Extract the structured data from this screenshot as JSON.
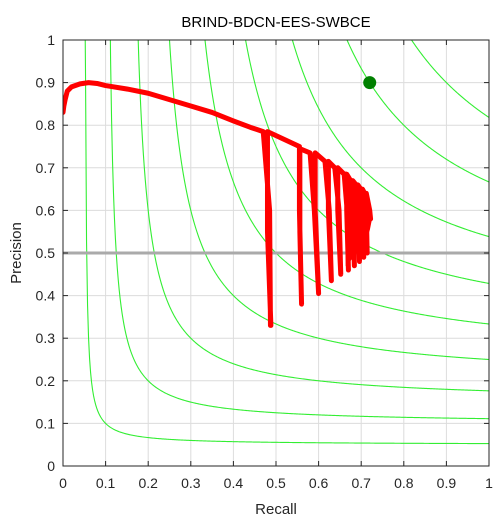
{
  "chart_data": {
    "type": "line",
    "title": "BRIND-BDCN-EES-SWBCE",
    "xlabel": "Recall",
    "ylabel": "Precision",
    "xlim": [
      0,
      1
    ],
    "ylim": [
      0,
      1
    ],
    "xticks": [
      0,
      0.1,
      0.2,
      0.3,
      0.4,
      0.5,
      0.6,
      0.7,
      0.8,
      0.9,
      1
    ],
    "yticks": [
      0,
      0.1,
      0.2,
      0.3,
      0.4,
      0.5,
      0.6,
      0.7,
      0.8,
      0.9,
      1
    ],
    "xtick_labels": [
      "0",
      "0.1",
      "0.2",
      "0.3",
      "0.4",
      "0.5",
      "0.6",
      "0.7",
      "0.8",
      "0.9",
      "1"
    ],
    "ytick_labels": [
      "0",
      "0.1",
      "0.2",
      "0.3",
      "0.4",
      "0.5",
      "0.6",
      "0.7",
      "0.8",
      "0.9",
      "1"
    ],
    "grid": true,
    "iso_f_levels": [
      0.1,
      0.2,
      0.3,
      0.4,
      0.5,
      0.6,
      0.7,
      0.8,
      0.9
    ],
    "chance_level_precision": 0.5,
    "pr_curve": {
      "recall": [
        0.0,
        0.002,
        0.005,
        0.01,
        0.02,
        0.04,
        0.06,
        0.08,
        0.1,
        0.15,
        0.2,
        0.25,
        0.3,
        0.35,
        0.4,
        0.44,
        0.47,
        0.485,
        0.487,
        0.488,
        0.48,
        0.48,
        0.555,
        0.555,
        0.56,
        0.556,
        0.556,
        0.58,
        0.59,
        0.6,
        0.592,
        0.592,
        0.615,
        0.625,
        0.63,
        0.623,
        0.623,
        0.638,
        0.648,
        0.652,
        0.645,
        0.645,
        0.66,
        0.667,
        0.67,
        0.666,
        0.666,
        0.675,
        0.682,
        0.684,
        0.68,
        0.68,
        0.688,
        0.694,
        0.696,
        0.692,
        0.692,
        0.699,
        0.704,
        0.706,
        0.703,
        0.703,
        0.708,
        0.712,
        0.714,
        0.712,
        0.712,
        0.716,
        0.72,
        0.722
      ],
      "precision": [
        0.83,
        0.845,
        0.86,
        0.88,
        0.89,
        0.897,
        0.9,
        0.898,
        0.893,
        0.885,
        0.875,
        0.86,
        0.845,
        0.83,
        0.81,
        0.795,
        0.785,
        0.6,
        0.33,
        0.33,
        0.55,
        0.785,
        0.75,
        0.6,
        0.38,
        0.55,
        0.745,
        0.735,
        0.6,
        0.405,
        0.6,
        0.735,
        0.715,
        0.6,
        0.435,
        0.6,
        0.715,
        0.7,
        0.6,
        0.45,
        0.6,
        0.7,
        0.685,
        0.6,
        0.46,
        0.6,
        0.685,
        0.67,
        0.6,
        0.47,
        0.6,
        0.67,
        0.66,
        0.6,
        0.48,
        0.6,
        0.66,
        0.65,
        0.6,
        0.49,
        0.6,
        0.65,
        0.64,
        0.6,
        0.5,
        0.6,
        0.64,
        0.62,
        0.6,
        0.58
      ],
      "color": "#ff0000"
    },
    "best_point": {
      "recall": 0.72,
      "precision": 0.9,
      "color": "#008000"
    },
    "colors": {
      "iso_f": "#33ee33",
      "chance_line": "#aaaaaa",
      "grid": "#dcdcdc",
      "axes": "#262626"
    }
  }
}
